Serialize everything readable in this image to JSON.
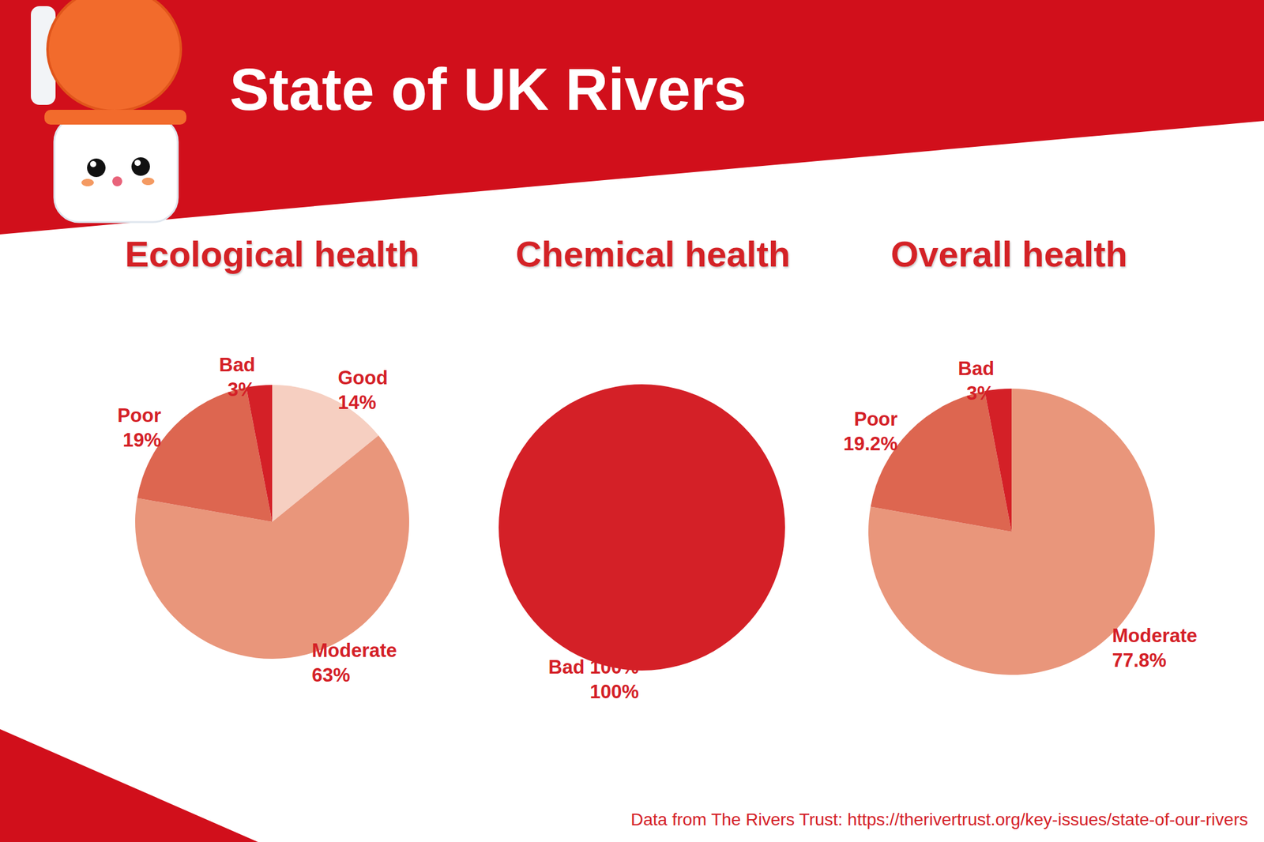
{
  "title": "State of UK Rivers",
  "source": "Data from The Rivers Trust: https://therivertrust.org/key-issues/state-of-our-rivers",
  "chart_data": [
    {
      "type": "pie",
      "title": "Ecological health",
      "categories": [
        "Good",
        "Moderate",
        "Poor",
        "Bad"
      ],
      "values": [
        14,
        63,
        19,
        3
      ],
      "value_labels": [
        "14%",
        "63%",
        "19%",
        "3%"
      ],
      "colors": [
        "#f6cfc1",
        "#e9967b",
        "#dd6650",
        "#d42027"
      ],
      "data_labels": true
    },
    {
      "type": "pie",
      "title": "Chemical health",
      "categories": [
        "Bad 100%"
      ],
      "values": [
        100
      ],
      "value_labels": [
        "100%"
      ],
      "colors": [
        "#d42027"
      ],
      "data_labels": true
    },
    {
      "type": "pie",
      "title": "Overall health",
      "categories": [
        "Moderate",
        "Poor",
        "Bad"
      ],
      "values": [
        77.8,
        19.2,
        3
      ],
      "value_labels": [
        "77.8%",
        "19.2%",
        "3%"
      ],
      "colors": [
        "#e9967b",
        "#dd6650",
        "#d42027"
      ],
      "data_labels": true
    }
  ]
}
